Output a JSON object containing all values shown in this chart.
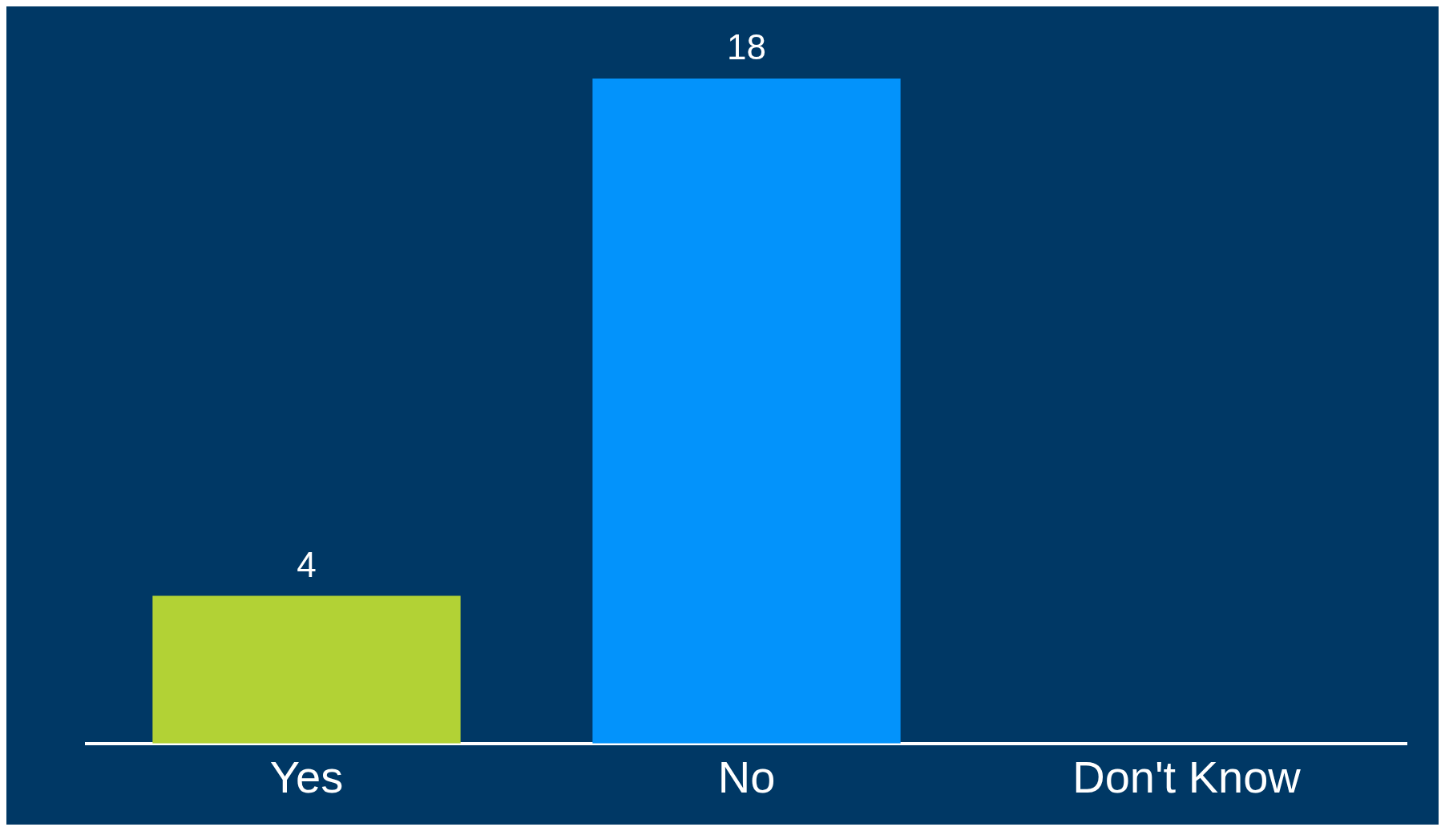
{
  "chart_data": {
    "type": "bar",
    "categories": [
      "Yes",
      "No",
      "Don't Know"
    ],
    "values": [
      4,
      18,
      0
    ],
    "colors": [
      "#b2d235",
      "#0393fb",
      "#0393fb"
    ],
    "value_labels": [
      "4",
      "18",
      null
    ],
    "grid": false,
    "legend": false,
    "tick_labels": "x"
  }
}
